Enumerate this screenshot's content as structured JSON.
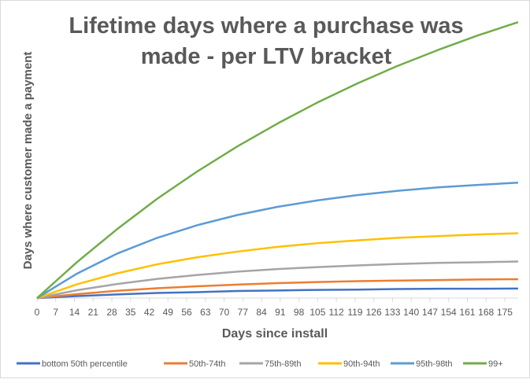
{
  "chart_data": {
    "type": "line",
    "title_lines": [
      "Lifetime days where a purchase was",
      "made - per LTV bracket"
    ],
    "xlabel": "Days since install",
    "ylabel": "Days where customer made a payment",
    "x_ticks": [
      "0",
      "7",
      "14",
      "21",
      "28",
      "35",
      "42",
      "49",
      "56",
      "63",
      "70",
      "77",
      "84",
      "91",
      "98",
      "105",
      "112",
      "119",
      "126",
      "133",
      "140",
      "147",
      "154",
      "161",
      "168",
      "175"
    ],
    "xlim": [
      0,
      180
    ],
    "ylim": [
      0,
      100
    ],
    "y_tick_labels_shown": false,
    "grid": false,
    "legend_position": "bottom",
    "x": [
      0,
      15,
      30,
      45,
      60,
      75,
      90,
      105,
      120,
      135,
      150,
      165,
      180
    ],
    "series": [
      {
        "name": "bottom 50th percentile",
        "color": "#4472c4",
        "values": [
          0,
          0.7,
          1.3,
          1.8,
          2.1,
          2.5,
          2.7,
          2.9,
          3.0,
          3.2,
          3.3,
          3.3,
          3.4
        ]
      },
      {
        "name": "50th-74th",
        "color": "#ed7d31",
        "values": [
          0,
          1.4,
          2.6,
          3.5,
          4.2,
          4.8,
          5.3,
          5.7,
          6.0,
          6.2,
          6.4,
          6.6,
          6.7
        ]
      },
      {
        "name": "75th-89th",
        "color": "#a5a5a5",
        "values": [
          0,
          2.8,
          5.0,
          6.8,
          8.2,
          9.4,
          10.3,
          11.0,
          11.6,
          12.1,
          12.5,
          12.7,
          13
        ]
      },
      {
        "name": "90th-94th",
        "color": "#ffc000",
        "values": [
          0,
          4.9,
          8.8,
          12.0,
          14.5,
          16.5,
          18.2,
          19.5,
          20.5,
          21.4,
          22.0,
          22.6,
          23
        ]
      },
      {
        "name": "95th-98th",
        "color": "#5b9bd5",
        "values": [
          0,
          8.7,
          15.8,
          21.4,
          25.9,
          29.5,
          32.4,
          34.7,
          36.6,
          38.1,
          39.3,
          40.2,
          41
        ]
      },
      {
        "name": "99+",
        "color": "#70ad47",
        "values": [
          0,
          12.8,
          24.5,
          35.3,
          45.0,
          53.9,
          62.0,
          69.5,
          76.3,
          82.5,
          88.1,
          93.3,
          98
        ]
      }
    ]
  }
}
